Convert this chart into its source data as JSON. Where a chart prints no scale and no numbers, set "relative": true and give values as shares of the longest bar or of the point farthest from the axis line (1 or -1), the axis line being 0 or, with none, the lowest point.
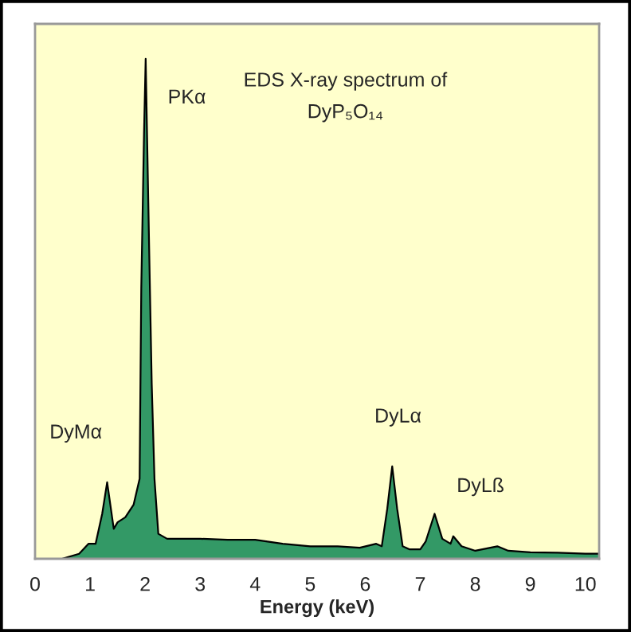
{
  "chart_data": {
    "type": "area",
    "relative": true,
    "title": "EDS X-ray spectrum of\nDyP₅O₁₄",
    "xlabel": "Energy (keV)",
    "x": [
      0.49,
      0.8,
      0.97,
      1.1,
      1.22,
      1.31,
      1.43,
      1.5,
      1.64,
      1.79,
      1.9,
      1.93,
      1.98,
      2.01,
      2.07,
      2.12,
      2.17,
      2.24,
      2.4,
      3.0,
      3.5,
      4.0,
      4.5,
      5.0,
      5.5,
      5.9,
      6.2,
      6.3,
      6.4,
      6.49,
      6.58,
      6.68,
      6.8,
      7.0,
      7.1,
      7.26,
      7.4,
      7.55,
      7.6,
      7.75,
      8.0,
      8.4,
      8.6,
      9.0,
      9.5,
      10.0,
      10.25
    ],
    "series": [
      {
        "color": "#339966",
        "values": [
          0,
          0.01,
          0.03,
          0.03,
          0.09,
          0.153,
          0.06,
          0.073,
          0.083,
          0.108,
          0.16,
          0.54,
          0.85,
          1.0,
          0.64,
          0.35,
          0.16,
          0.05,
          0.04,
          0.04,
          0.038,
          0.038,
          0.03,
          0.025,
          0.025,
          0.022,
          0.03,
          0.025,
          0.1,
          0.185,
          0.1,
          0.025,
          0.019,
          0.019,
          0.035,
          0.09,
          0.04,
          0.03,
          0.045,
          0.025,
          0.016,
          0.025,
          0.016,
          0.013,
          0.012,
          0.01,
          0.01
        ]
      }
    ],
    "xlim": [
      0,
      10.25
    ],
    "xticks": [
      0,
      1,
      2,
      3,
      4,
      5,
      6,
      7,
      8,
      9,
      10
    ],
    "grid": false,
    "annotations": [
      {
        "text": "PKα",
        "x": 2.01,
        "y": 1.0
      },
      {
        "text": "DyMα",
        "x": 1.31,
        "y": 0.153
      },
      {
        "text": "DyLα",
        "x": 6.49,
        "y": 0.185
      },
      {
        "text": "DyLß",
        "x": 7.26,
        "y": 0.09
      }
    ]
  }
}
